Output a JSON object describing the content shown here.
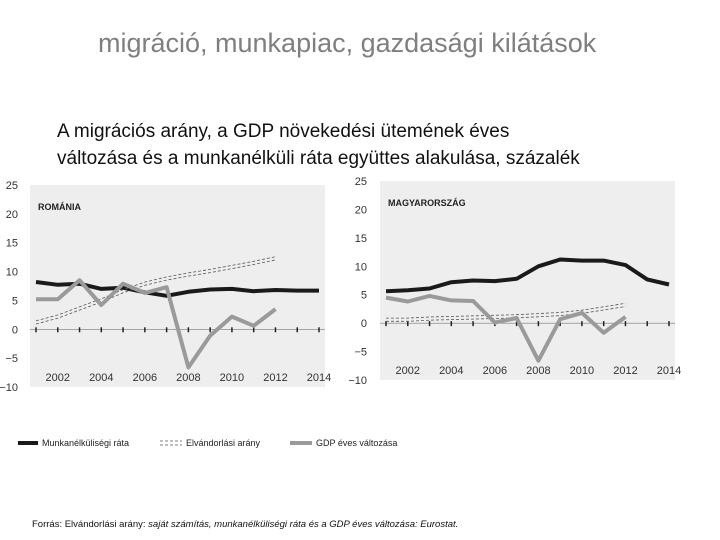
{
  "page": {
    "title": "migráció, munkapiac, gazdasági kilátások",
    "chart_title_line1": "A migrációs arány, a GDP növekedési ütemének éves",
    "chart_title_line2": "változása és a munkanélküli ráta együttes alakulása, százalék",
    "source_prefix": "Forrás: Elvándorlási arány: ",
    "source_italic": "saját számítás, munkanélküliségi ráta és a GDP éves változása: Eurostat."
  },
  "legend": {
    "unemployment": "Munkanélküliségi ráta",
    "emigration": "Elvándorlási arány",
    "gdp": "GDP éves változása"
  },
  "colors": {
    "unemployment": "#1a1a1a",
    "emigration": "#555555",
    "gdp": "#9a9a9a",
    "panel": "#eeeeee"
  },
  "chart_data": [
    {
      "type": "line",
      "title": "ROMÁNIA",
      "x": [
        2001,
        2002,
        2003,
        2004,
        2005,
        2006,
        2007,
        2008,
        2009,
        2010,
        2011,
        2012,
        2013,
        2014
      ],
      "xticks": [
        "2002",
        "2004",
        "2006",
        "2008",
        "2010",
        "2012",
        "2014"
      ],
      "yticks": [
        "25",
        "20",
        "15",
        "10",
        "5",
        "0",
        "−5",
        "−10"
      ],
      "ylim": [
        -10,
        25
      ],
      "series": [
        {
          "name": "Munkanélküliségi ráta",
          "values": [
            8.2,
            7.7,
            7.9,
            7.0,
            7.2,
            6.4,
            5.8,
            6.5,
            6.9,
            7.0,
            6.6,
            6.8,
            6.7,
            6.7
          ]
        },
        {
          "name": "Elvándorlási arány",
          "values": [
            1.2,
            2.2,
            3.6,
            5.0,
            6.6,
            7.9,
            8.8,
            9.5,
            10.1,
            10.8,
            11.5,
            12.3,
            null,
            null
          ]
        },
        {
          "name": "GDP éves változása",
          "values": [
            5.2,
            5.2,
            8.5,
            4.2,
            7.9,
            6.3,
            7.3,
            -6.6,
            -1.1,
            2.2,
            0.6,
            3.5,
            null,
            null
          ]
        }
      ]
    },
    {
      "type": "line",
      "title": "MAGYARORSZÁG",
      "x": [
        2001,
        2002,
        2003,
        2004,
        2005,
        2006,
        2007,
        2008,
        2009,
        2010,
        2011,
        2012,
        2013,
        2014
      ],
      "xticks": [
        "2002",
        "2004",
        "2006",
        "2008",
        "2010",
        "2012",
        "2014"
      ],
      "yticks": [
        "25",
        "20",
        "15",
        "10",
        "5",
        "0",
        "−5",
        "−10"
      ],
      "ylim": [
        -10,
        25
      ],
      "series": [
        {
          "name": "Munkanélküliségi ráta",
          "values": [
            5.6,
            5.8,
            6.1,
            7.2,
            7.5,
            7.4,
            7.8,
            10.0,
            11.2,
            11.0,
            11.0,
            10.2,
            7.7,
            6.8
          ]
        },
        {
          "name": "Elvándorlási arány",
          "values": [
            0.6,
            0.6,
            0.8,
            0.9,
            1.0,
            1.1,
            1.2,
            1.4,
            1.6,
            2.0,
            2.6,
            3.2,
            null,
            null
          ]
        },
        {
          "name": "GDP éves változása",
          "values": [
            4.5,
            3.8,
            4.8,
            4.0,
            3.9,
            0.1,
            0.9,
            -6.6,
            0.7,
            1.8,
            -1.7,
            1.1,
            null,
            null
          ]
        }
      ]
    }
  ]
}
